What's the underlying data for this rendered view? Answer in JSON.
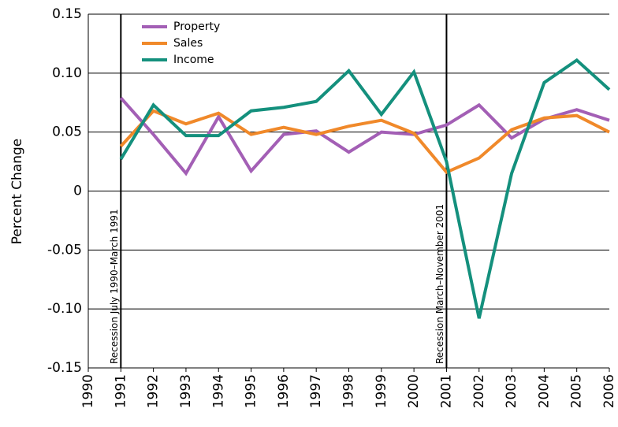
{
  "chart_data": {
    "type": "line",
    "y_label": "Percent Change",
    "x": [
      1991,
      1992,
      1993,
      1994,
      1995,
      1996,
      1997,
      1998,
      1999,
      2000,
      2001,
      2002,
      2003,
      2004,
      2005,
      2006
    ],
    "series": [
      {
        "name": "Property",
        "color": "#a35fb5",
        "values": [
          0.079,
          0.048,
          0.015,
          0.063,
          0.017,
          0.048,
          0.051,
          0.033,
          0.05,
          0.048,
          0.056,
          0.073,
          0.045,
          0.061,
          0.069,
          0.06
        ]
      },
      {
        "name": "Sales",
        "color": "#f0892a",
        "values": [
          0.038,
          0.068,
          0.057,
          0.066,
          0.048,
          0.054,
          0.048,
          0.055,
          0.06,
          0.049,
          0.016,
          0.028,
          0.052,
          0.062,
          0.064,
          0.05
        ]
      },
      {
        "name": "Income",
        "color": "#14907d",
        "values": [
          0.027,
          0.073,
          0.047,
          0.047,
          0.068,
          0.071,
          0.076,
          0.102,
          0.065,
          0.101,
          0.025,
          -0.108,
          0.015,
          0.092,
          0.111,
          0.086
        ]
      }
    ],
    "annotations": [
      {
        "x": 1991,
        "text": "Recession July 1990–March 1991"
      },
      {
        "x": 2001,
        "text": "Recession March–November 2001"
      }
    ],
    "xlim": [
      1990,
      2006
    ],
    "xticks": [
      1990,
      1991,
      1992,
      1993,
      1994,
      1995,
      1996,
      1997,
      1998,
      1999,
      2000,
      2001,
      2002,
      2003,
      2004,
      2005,
      2006
    ],
    "ylim": [
      -0.15,
      0.15
    ],
    "yticks": [
      -0.15,
      {
        "value": -0.1,
        "label": "-0.10"
      },
      -0.05,
      0,
      0.05,
      {
        "value": 0.1,
        "label": "0.10"
      },
      0.15
    ],
    "grid": true,
    "legend": "top-left"
  }
}
